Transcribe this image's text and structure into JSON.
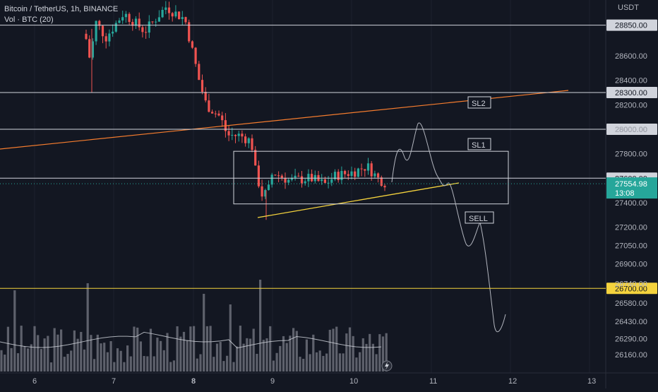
{
  "header": {
    "symbol": "Bitcoin / TetherUS, 1h, BINANCE",
    "volume": "Vol · BTC (20)",
    "currency": "USDT"
  },
  "colors": {
    "bg": "#131722",
    "up": "#26a69a",
    "down": "#ef5350",
    "hline": "#d1d4dc",
    "orange": "#f57c2e",
    "yellow": "#f5d33d",
    "drawing": "#b2b5be",
    "volume": "#787b86",
    "last_price_bg": "#26a69a"
  },
  "chart_data": {
    "type": "candlestick",
    "title": "Bitcoin / TetherUS, 1h, BINANCE",
    "y_ticks": [
      28400,
      28200,
      28000,
      27800,
      27400,
      27200,
      27050,
      26900,
      26740,
      26580,
      26430,
      26290,
      26160
    ],
    "y_ticks_display": [
      "28400.00",
      "28200.00",
      "28000.00",
      "27800.00",
      "27400.00",
      "27200.00",
      "27050.00",
      "26900.00",
      "26740.00",
      "26580.00",
      "26430.00",
      "26290.00",
      "26160.00"
    ],
    "y_ticks_upper": [
      "28600.00"
    ],
    "x_ticks": [
      "6",
      "7",
      "8",
      "9",
      "10",
      "11",
      "12",
      "13"
    ],
    "x_ticks_bold": [
      "8"
    ],
    "price_levels": [
      {
        "value": 28850,
        "label": "28850.00",
        "style": "white"
      },
      {
        "value": 28300,
        "label": "28300.00",
        "style": "white"
      },
      {
        "value": 28000,
        "label": "28000.00",
        "style": "white"
      },
      {
        "value": 27600,
        "label": "27600.00",
        "style": "white"
      },
      {
        "value": 26700,
        "label": "26700.00",
        "style": "yellow"
      }
    ],
    "last_price": {
      "value": 27554.98,
      "label": "27554.98",
      "countdown": "13:08"
    },
    "annotations": [
      "SL2",
      "SL1",
      "SELL"
    ],
    "zone": {
      "price_top": 27820,
      "price_bottom": 27390
    },
    "volume_ma_label": "Vol · BTC (20)"
  }
}
